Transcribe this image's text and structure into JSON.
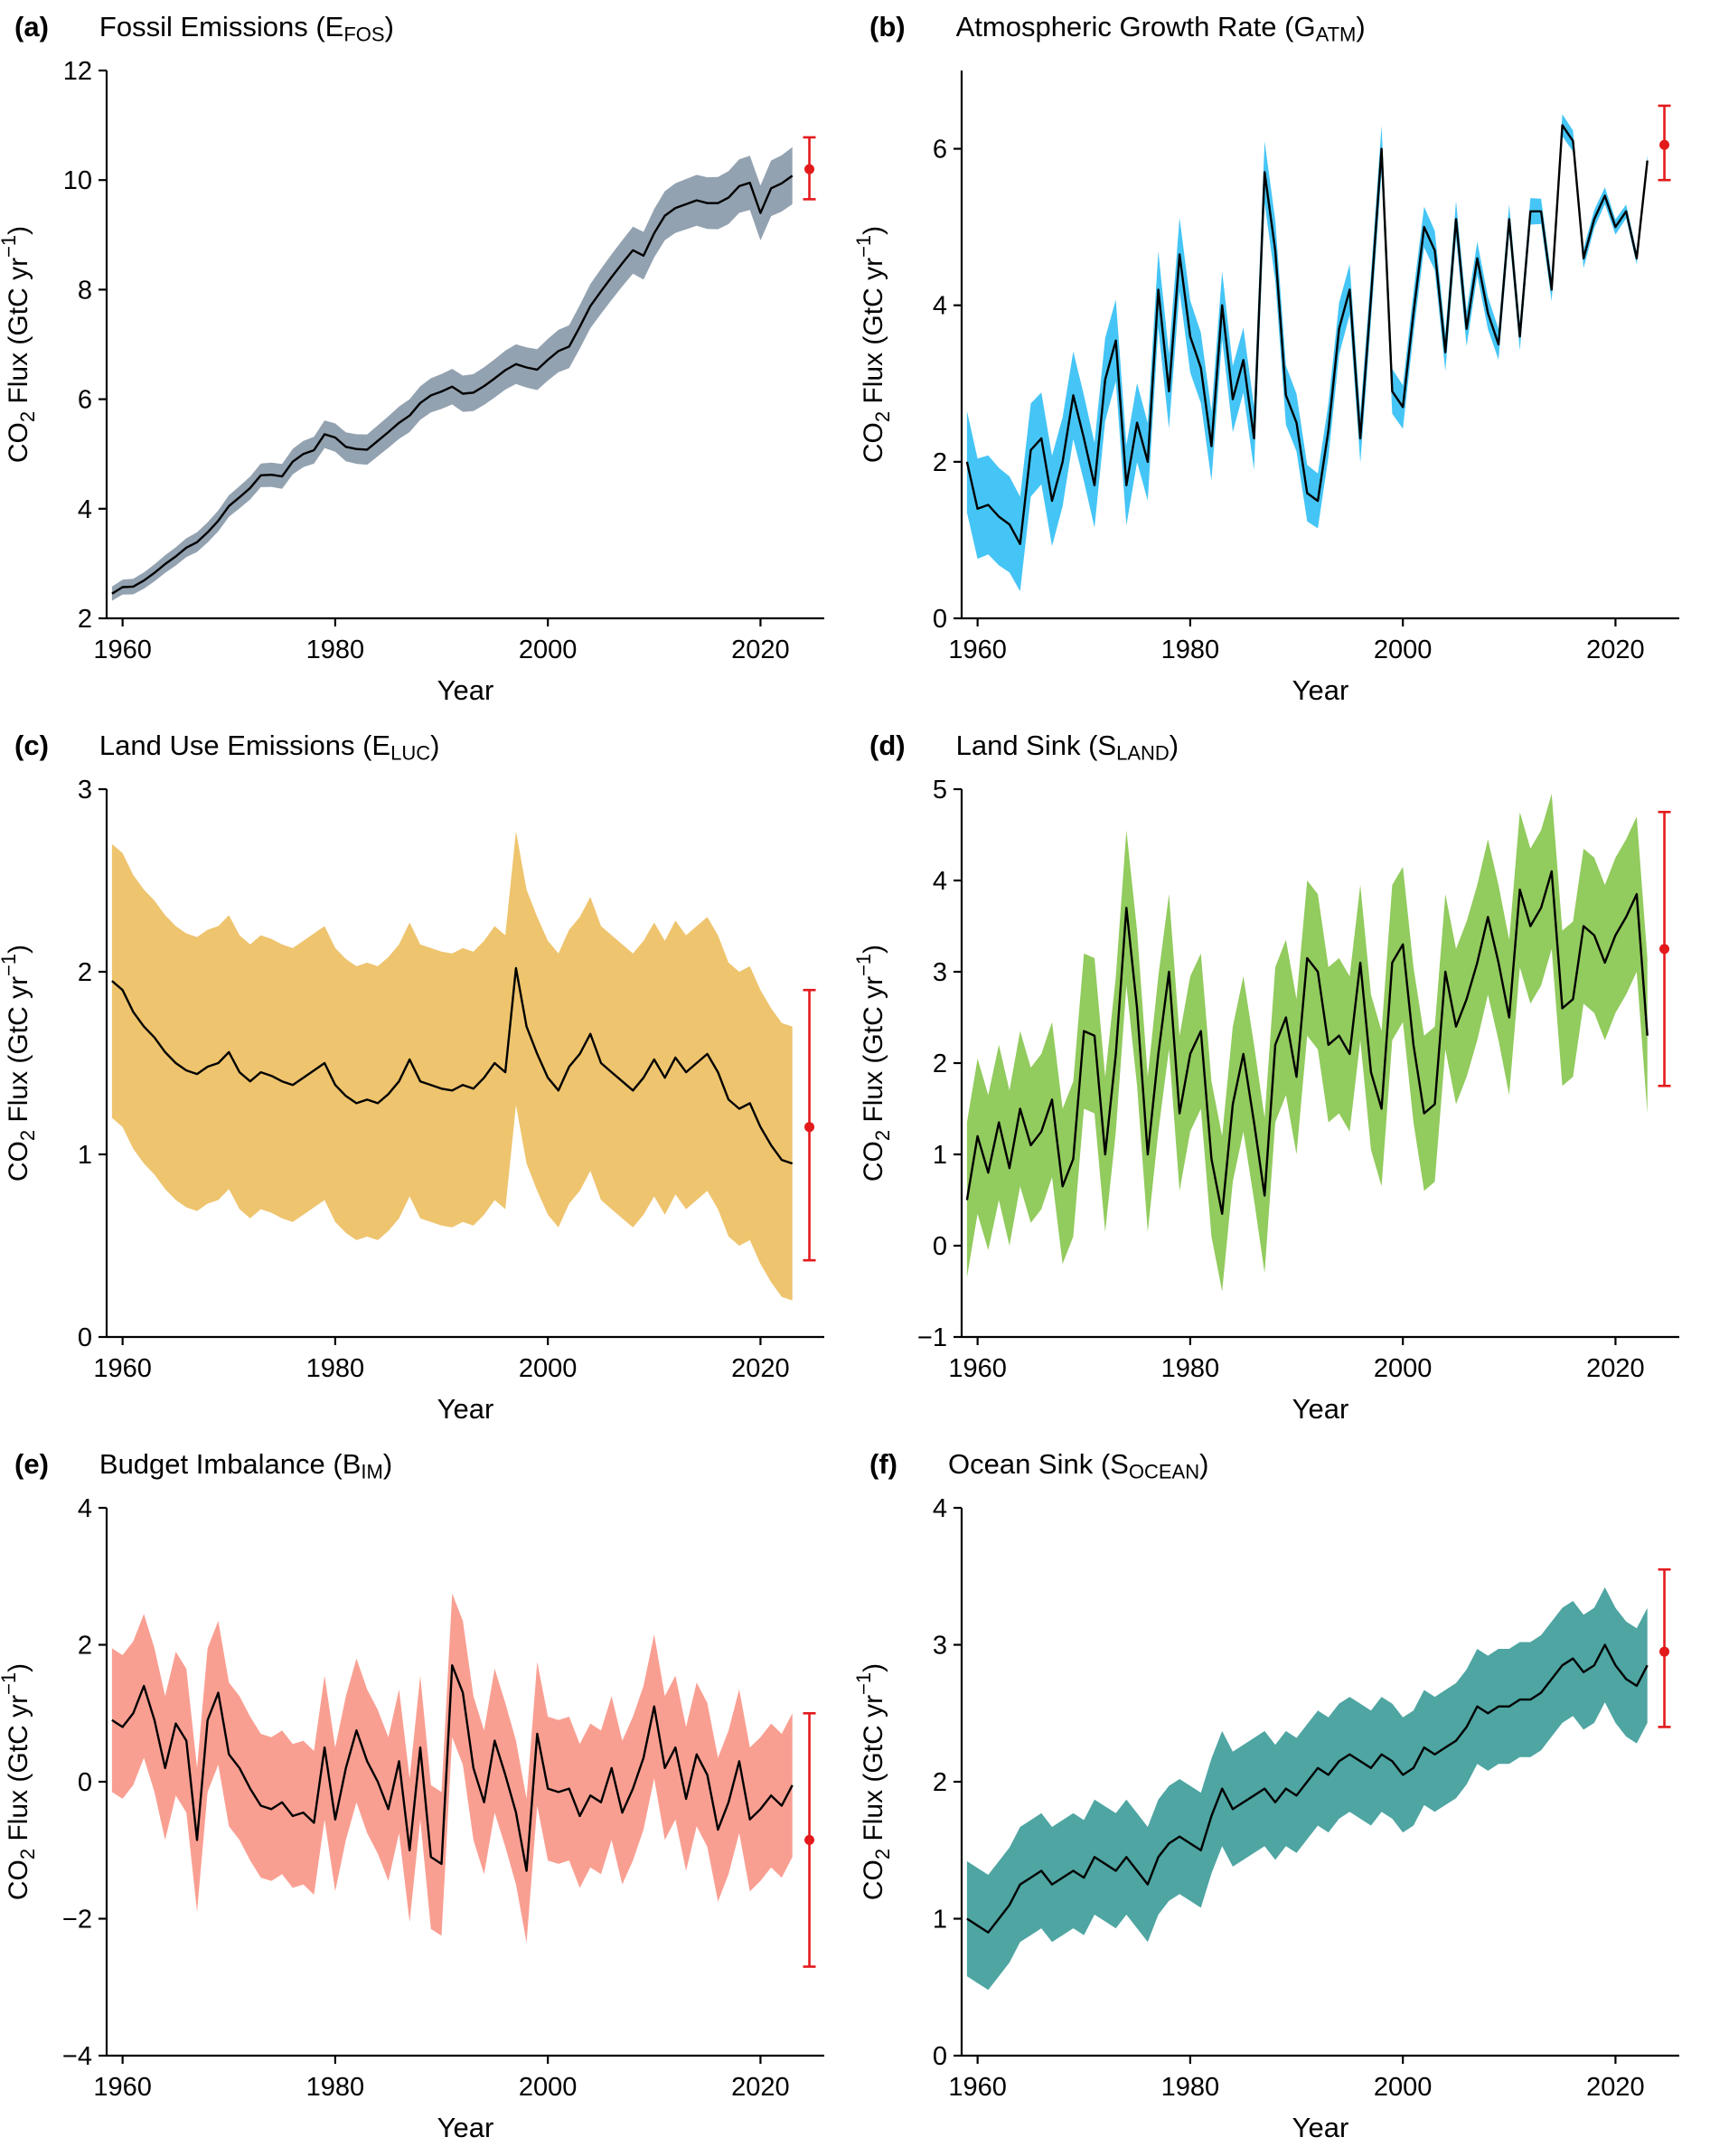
{
  "figure": {
    "xlabel": "Year",
    "ylabel": {
      "pre": "CO",
      "sub": "2",
      "mid": " Flux (GtC yr",
      "sup": "−1",
      "post": ")"
    }
  },
  "colors": {
    "line": "#000000",
    "axis": "#000000",
    "projection": "#e31a1c",
    "background": "#ffffff"
  },
  "chart_data": [
    {
      "letter": "(a)",
      "type": "line",
      "title": {
        "pre": "Fossil Emissions (E",
        "sub": "FOS",
        "post": ")"
      },
      "band_color": "#93a2b1",
      "x_start": 1959,
      "xlim": [
        1958.5,
        2026.0
      ],
      "xticks": [
        1960,
        1980,
        2000,
        2020
      ],
      "ylim": [
        2,
        12
      ],
      "yticks": [
        2,
        4,
        6,
        8,
        10,
        12
      ],
      "values": [
        2.45,
        2.57,
        2.58,
        2.69,
        2.83,
        2.99,
        3.13,
        3.29,
        3.39,
        3.57,
        3.78,
        4.05,
        4.21,
        4.38,
        4.61,
        4.62,
        4.59,
        4.86,
        5.0,
        5.07,
        5.36,
        5.3,
        5.13,
        5.09,
        5.08,
        5.24,
        5.4,
        5.57,
        5.7,
        5.93,
        6.07,
        6.14,
        6.23,
        6.1,
        6.12,
        6.24,
        6.38,
        6.53,
        6.64,
        6.58,
        6.54,
        6.72,
        6.88,
        6.96,
        7.32,
        7.7,
        7.97,
        8.23,
        8.48,
        8.72,
        8.62,
        9.03,
        9.35,
        9.49,
        9.56,
        9.63,
        9.58,
        9.58,
        9.68,
        9.89,
        9.95,
        9.4,
        9.85,
        9.94,
        10.08
      ],
      "band": {
        "lin": [
          0.13,
          0.52
        ]
      },
      "projection": {
        "x": 2024.6,
        "y": 10.2,
        "lo": 9.65,
        "hi": 10.78
      }
    },
    {
      "letter": "(b)",
      "type": "line",
      "title": {
        "pre": "Atmospheric Growth Rate (G",
        "sub": "ATM",
        "post": ")"
      },
      "band_color": "#45c5f6",
      "x_start": 1959,
      "xlim": [
        1958.5,
        2026.0
      ],
      "xticks": [
        1960,
        1980,
        2000,
        2020
      ],
      "ylim": [
        0,
        7
      ],
      "yticks": [
        0,
        2,
        4,
        6
      ],
      "values": [
        2.0,
        1.4,
        1.45,
        1.3,
        1.2,
        0.95,
        2.15,
        2.3,
        1.5,
        2.0,
        2.85,
        2.3,
        1.7,
        3.05,
        3.55,
        1.7,
        2.5,
        2.0,
        4.2,
        2.9,
        4.65,
        3.6,
        3.2,
        2.2,
        4.0,
        2.8,
        3.3,
        2.3,
        5.7,
        4.7,
        2.85,
        2.5,
        1.6,
        1.5,
        2.4,
        3.7,
        4.2,
        2.3,
        4.1,
        6.0,
        2.9,
        2.7,
        3.9,
        5.0,
        4.7,
        3.4,
        5.1,
        3.7,
        4.6,
        3.9,
        3.5,
        5.1,
        3.6,
        5.2,
        5.2,
        4.2,
        6.3,
        6.1,
        4.6,
        5.1,
        5.4,
        5.0,
        5.2,
        4.6,
        5.85
      ],
      "band": {
        "lin": [
          0.65,
          0.07
        ]
      },
      "projection": {
        "x": 2024.6,
        "y": 6.05,
        "lo": 5.6,
        "hi": 6.55
      }
    },
    {
      "letter": "(c)",
      "type": "line",
      "title": {
        "pre": "Land Use Emissions (E",
        "sub": "LUC",
        "post": ")"
      },
      "band_color": "#eec46e",
      "x_start": 1959,
      "xlim": [
        1958.5,
        2026.0
      ],
      "xticks": [
        1960,
        1980,
        2000,
        2020
      ],
      "ylim": [
        0,
        3
      ],
      "yticks": [
        0,
        1,
        2,
        3
      ],
      "values": [
        1.95,
        1.9,
        1.78,
        1.7,
        1.64,
        1.56,
        1.5,
        1.46,
        1.44,
        1.48,
        1.5,
        1.56,
        1.45,
        1.4,
        1.45,
        1.43,
        1.4,
        1.38,
        1.42,
        1.46,
        1.5,
        1.38,
        1.32,
        1.28,
        1.3,
        1.28,
        1.33,
        1.4,
        1.52,
        1.4,
        1.38,
        1.36,
        1.35,
        1.38,
        1.36,
        1.42,
        1.5,
        1.45,
        2.02,
        1.7,
        1.55,
        1.42,
        1.35,
        1.48,
        1.55,
        1.66,
        1.5,
        1.45,
        1.4,
        1.35,
        1.42,
        1.52,
        1.42,
        1.53,
        1.45,
        1.5,
        1.55,
        1.45,
        1.3,
        1.25,
        1.28,
        1.15,
        1.05,
        0.97,
        0.95
      ],
      "band": 0.75,
      "projection": {
        "x": 2024.6,
        "y": 1.15,
        "lo": 0.42,
        "hi": 1.9
      }
    },
    {
      "letter": "(d)",
      "type": "line",
      "title": {
        "pre": "Land Sink (S",
        "sub": "LAND",
        "post": ")"
      },
      "band_color": "#92cb5e",
      "x_start": 1959,
      "xlim": [
        1958.5,
        2026.0
      ],
      "xticks": [
        1960,
        1980,
        2000,
        2020
      ],
      "ylim": [
        -1,
        5
      ],
      "yticks": [
        -1,
        0,
        1,
        2,
        3,
        4,
        5
      ],
      "values": [
        0.5,
        1.2,
        0.8,
        1.35,
        0.85,
        1.5,
        1.1,
        1.25,
        1.6,
        0.65,
        0.95,
        2.35,
        2.3,
        1.0,
        2.1,
        3.7,
        2.6,
        1.0,
        2.1,
        3.0,
        1.45,
        2.1,
        2.35,
        0.95,
        0.35,
        1.55,
        2.1,
        1.35,
        0.55,
        2.2,
        2.5,
        1.85,
        3.15,
        3.0,
        2.2,
        2.3,
        2.1,
        3.1,
        1.9,
        1.5,
        3.1,
        3.3,
        2.2,
        1.45,
        1.55,
        3.0,
        2.4,
        2.7,
        3.1,
        3.6,
        3.1,
        2.5,
        3.9,
        3.5,
        3.7,
        4.1,
        2.6,
        2.7,
        3.5,
        3.4,
        3.1,
        3.4,
        3.6,
        3.85,
        2.3
      ],
      "band": 0.85,
      "projection": {
        "x": 2024.6,
        "y": 3.25,
        "lo": 1.75,
        "hi": 4.75
      }
    },
    {
      "letter": "(e)",
      "type": "line",
      "title": {
        "pre": "Budget Imbalance (B",
        "sub": "IM",
        "post": ")"
      },
      "band_color": "#f99f92",
      "x_start": 1959,
      "xlim": [
        1958.5,
        2026.0
      ],
      "xticks": [
        1960,
        1980,
        2000,
        2020
      ],
      "ylim": [
        -4,
        4
      ],
      "yticks": [
        -4,
        -2,
        0,
        2,
        4
      ],
      "values": [
        0.9,
        0.8,
        1.0,
        1.4,
        0.9,
        0.2,
        0.85,
        0.6,
        -0.85,
        0.9,
        1.3,
        0.4,
        0.2,
        -0.1,
        -0.35,
        -0.4,
        -0.3,
        -0.5,
        -0.45,
        -0.6,
        0.5,
        -0.55,
        0.2,
        0.75,
        0.3,
        0.0,
        -0.4,
        0.3,
        -1.0,
        0.5,
        -1.1,
        -1.2,
        1.7,
        1.3,
        0.2,
        -0.3,
        0.6,
        0.1,
        -0.45,
        -1.3,
        0.7,
        -0.1,
        -0.15,
        -0.1,
        -0.5,
        -0.2,
        -0.3,
        0.2,
        -0.45,
        -0.1,
        0.35,
        1.1,
        0.2,
        0.5,
        -0.25,
        0.4,
        0.1,
        -0.7,
        -0.3,
        0.3,
        -0.55,
        -0.4,
        -0.2,
        -0.35,
        -0.05
      ],
      "band": 1.05,
      "projection": {
        "x": 2024.6,
        "y": -0.85,
        "lo": -2.7,
        "hi": 1.0
      }
    },
    {
      "letter": "(f)",
      "type": "line",
      "title": {
        "pre": "Ocean Sink (S",
        "sub": "OCEAN",
        "post": ")"
      },
      "band_color": "#4ea5a2",
      "x_start": 1959,
      "xlim": [
        1958.5,
        2026.0
      ],
      "xticks": [
        1960,
        1980,
        2000,
        2020
      ],
      "ylim": [
        0,
        4
      ],
      "yticks": [
        0,
        1,
        2,
        3,
        4
      ],
      "values": [
        1.0,
        0.95,
        0.9,
        1.0,
        1.1,
        1.25,
        1.3,
        1.35,
        1.25,
        1.3,
        1.35,
        1.3,
        1.45,
        1.4,
        1.35,
        1.45,
        1.35,
        1.25,
        1.45,
        1.55,
        1.6,
        1.55,
        1.5,
        1.75,
        1.95,
        1.8,
        1.85,
        1.9,
        1.95,
        1.85,
        1.95,
        1.9,
        2.0,
        2.1,
        2.05,
        2.15,
        2.2,
        2.15,
        2.1,
        2.2,
        2.15,
        2.05,
        2.1,
        2.25,
        2.2,
        2.25,
        2.3,
        2.4,
        2.55,
        2.5,
        2.55,
        2.55,
        2.6,
        2.6,
        2.65,
        2.75,
        2.85,
        2.9,
        2.8,
        2.85,
        3.0,
        2.85,
        2.75,
        2.7,
        2.85
      ],
      "band": 0.42,
      "projection": {
        "x": 2024.6,
        "y": 2.95,
        "lo": 2.4,
        "hi": 3.55
      }
    }
  ]
}
